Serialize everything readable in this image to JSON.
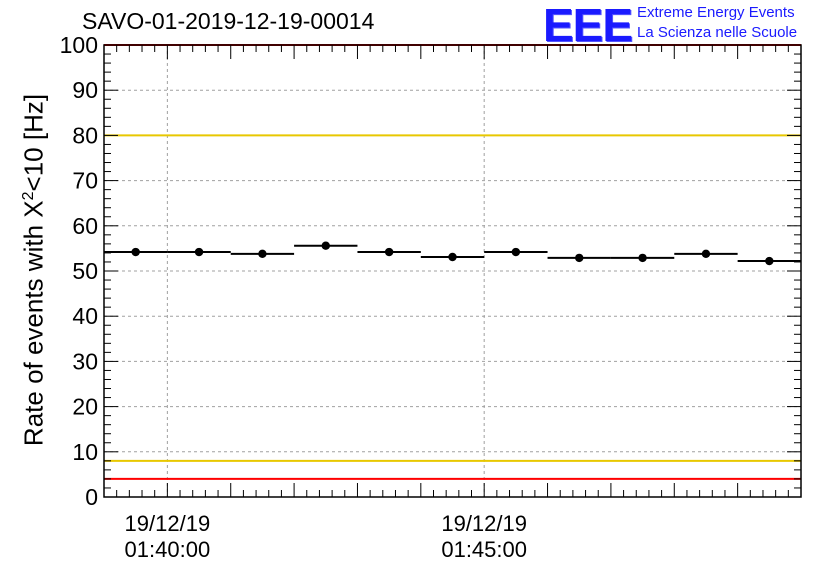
{
  "chart_data": {
    "type": "scatter",
    "title": "SAVO-01-2019-12-19-00014",
    "ylabel_prefix": "Rate of events with X",
    "ylabel_sup": "2",
    "ylabel_suffix": "<10 [Hz]",
    "ylim": [
      0,
      100
    ],
    "yticks": [
      "0",
      "10",
      "20",
      "30",
      "40",
      "50",
      "60",
      "70",
      "80",
      "90",
      "100"
    ],
    "xlim": [
      0,
      11
    ],
    "xticks": [
      {
        "x": 1.0,
        "date": "19/12/19",
        "time": "01:40:00"
      },
      {
        "x": 6.0,
        "date": "19/12/19",
        "time": "01:45:00"
      }
    ],
    "grid": true,
    "bin_width": 1.0,
    "x": [
      0.5,
      1.5,
      2.5,
      3.5,
      4.5,
      5.5,
      6.5,
      7.5,
      8.5,
      9.5,
      10.5
    ],
    "values": [
      54.2,
      54.2,
      53.8,
      55.6,
      54.2,
      53.1,
      54.2,
      52.9,
      52.9,
      53.8,
      52.2
    ],
    "reference_lines": [
      {
        "y": 100,
        "color": "#ff0000"
      },
      {
        "y": 80,
        "color": "#e8c800"
      },
      {
        "y": 8,
        "color": "#e8c800"
      },
      {
        "y": 4,
        "color": "#ff0000"
      }
    ]
  },
  "logo": {
    "mark": "EEE",
    "line1": "Extreme Energy Events",
    "line2": "La Scienza nelle Scuole"
  }
}
